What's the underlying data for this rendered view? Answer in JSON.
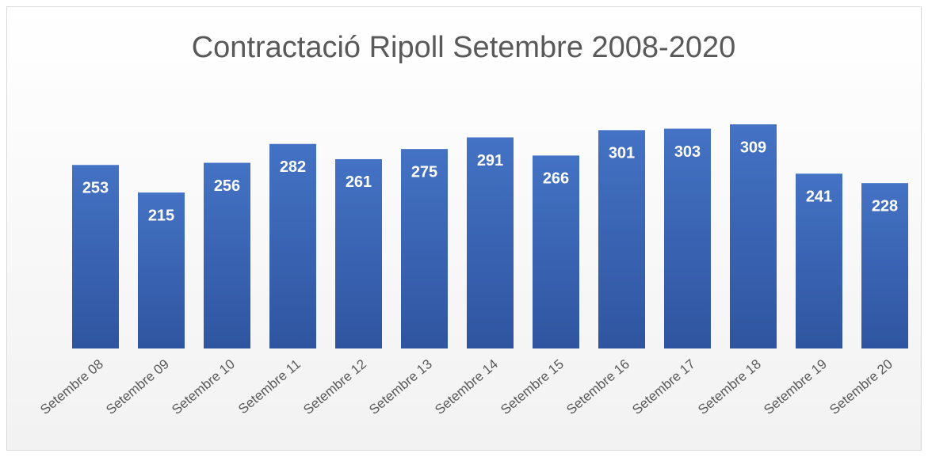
{
  "chart_data": {
    "type": "bar",
    "title": "Contractació Ripoll Setembre 2008-2020",
    "categories": [
      "Setembre 08",
      "Setembre 09",
      "Setembre 10",
      "Setembre 11",
      "Setembre 12",
      "Setembre 13",
      "Setembre 14",
      "Setembre 15",
      "Setembre 16",
      "Setembre 17",
      "Setembre 18",
      "Setembre 19",
      "Setembre 20"
    ],
    "values": [
      253,
      215,
      256,
      282,
      261,
      275,
      291,
      266,
      301,
      303,
      309,
      241,
      228
    ],
    "color": "#4472c4"
  }
}
